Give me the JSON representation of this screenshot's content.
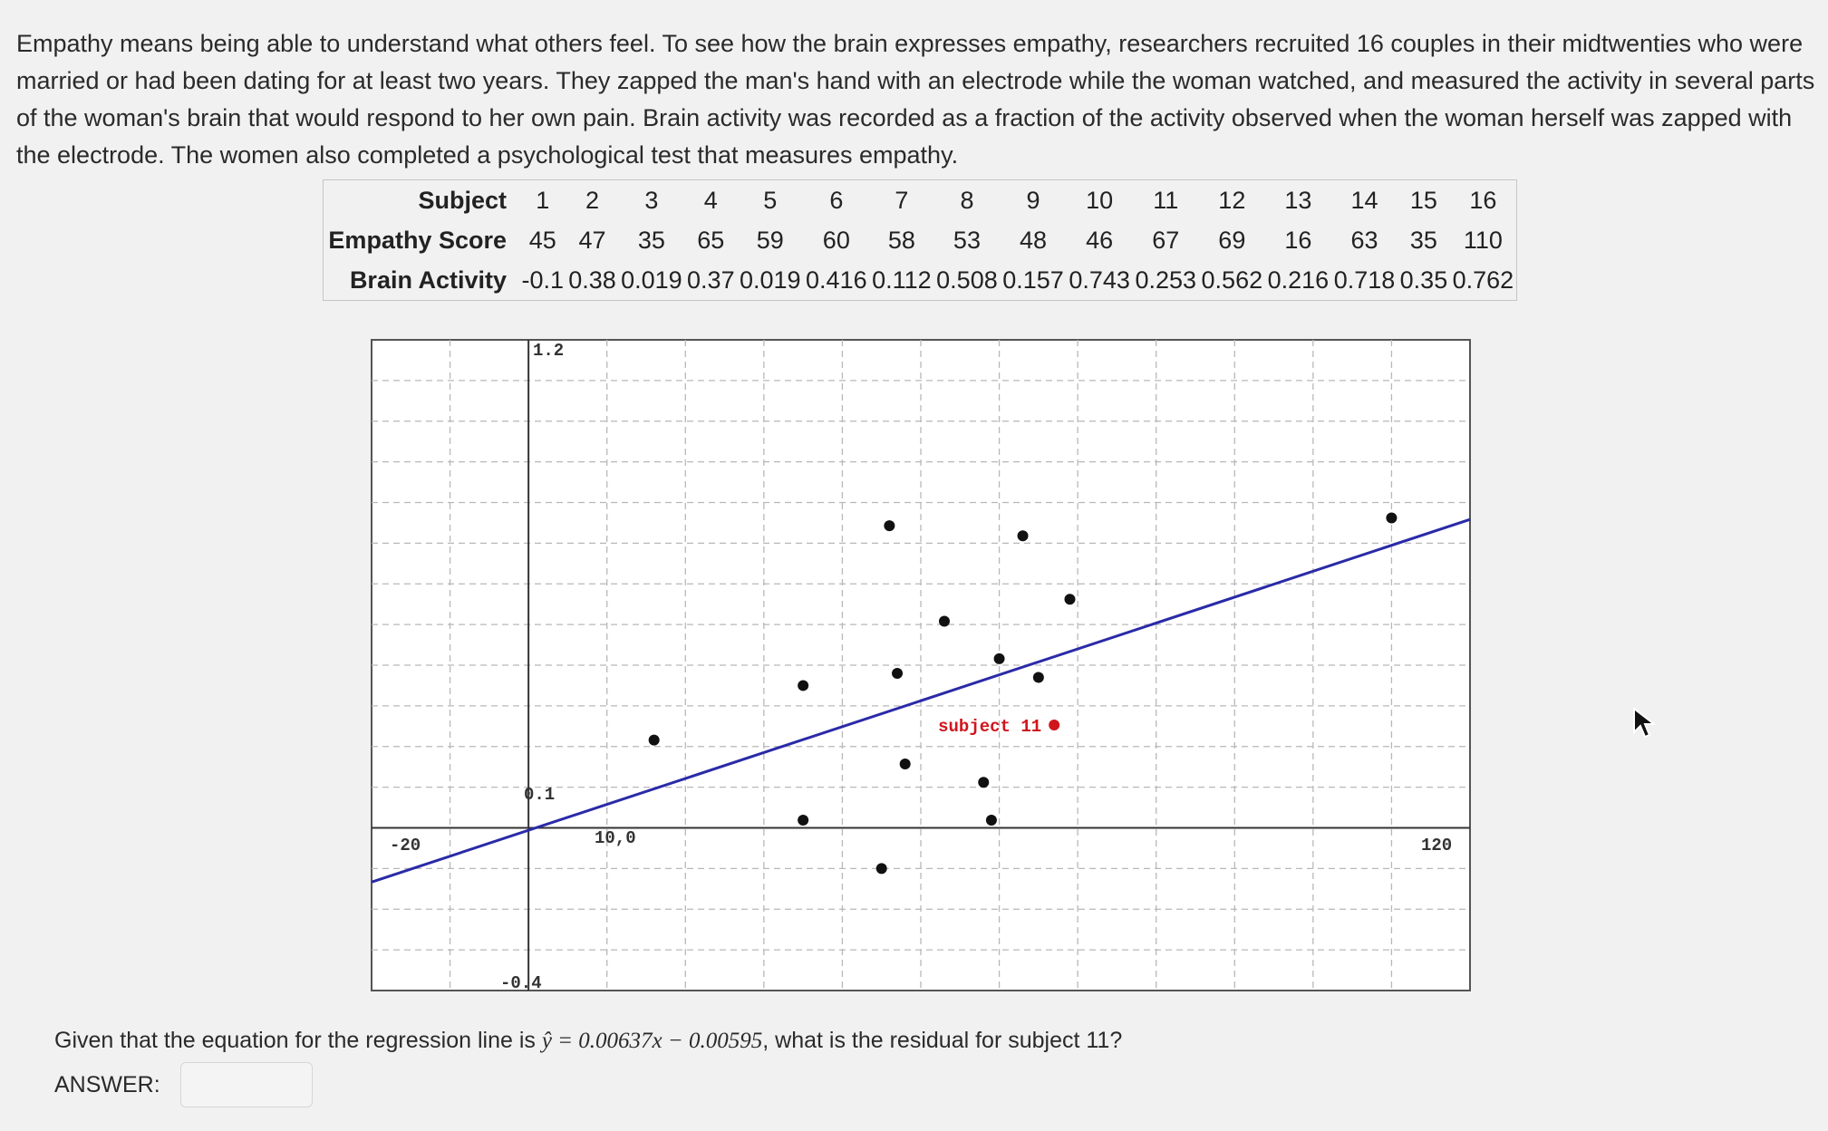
{
  "intro": {
    "paragraph": "Empathy means being able to understand what others feel. To see how the brain expresses empathy, researchers recruited 16 couples in their midtwenties who were married or had been dating for at least two years. They zapped the man's hand with an electrode while the woman watched, and measured the activity in several parts of the woman's brain that would respond to her own pain. Brain activity was recorded as a fraction of the activity observed when the woman herself was zapped with the electrode. The women also completed a psychological test that measures empathy."
  },
  "table": {
    "row_labels": [
      "Subject",
      "Empathy Score",
      "Brain Activity"
    ],
    "subjects": [
      "1",
      "2",
      "3",
      "4",
      "5",
      "6",
      "7",
      "8",
      "9",
      "10",
      "11",
      "12",
      "13",
      "14",
      "15",
      "16"
    ],
    "empathy": [
      "45",
      "47",
      "35",
      "65",
      "59",
      "60",
      "58",
      "53",
      "48",
      "46",
      "67",
      "69",
      "16",
      "63",
      "35",
      "110"
    ],
    "activity": [
      "-0.1",
      "0.38",
      "0.019",
      "0.37",
      "0.019",
      "0.416",
      "0.112",
      "0.508",
      "0.157",
      "0.743",
      "0.253",
      "0.562",
      "0.216",
      "0.718",
      "0.35",
      "0.762"
    ]
  },
  "chart_data": {
    "type": "scatter",
    "tick_labels": {
      "x_min": "-20",
      "x_max": "120",
      "x_mark": "10,0",
      "y_max": "1.2",
      "y_mark": "0.1",
      "y_min": "-0.4"
    },
    "xlim": [
      -20,
      120
    ],
    "ylim": [
      -0.4,
      1.2
    ],
    "grid": true,
    "points": [
      {
        "x": 45,
        "y": -0.1
      },
      {
        "x": 47,
        "y": 0.38
      },
      {
        "x": 35,
        "y": 0.019
      },
      {
        "x": 65,
        "y": 0.37
      },
      {
        "x": 59,
        "y": 0.019
      },
      {
        "x": 60,
        "y": 0.416
      },
      {
        "x": 58,
        "y": 0.112
      },
      {
        "x": 53,
        "y": 0.508
      },
      {
        "x": 48,
        "y": 0.157
      },
      {
        "x": 46,
        "y": 0.743
      },
      {
        "x": 67,
        "y": 0.253
      },
      {
        "x": 69,
        "y": 0.562
      },
      {
        "x": 16,
        "y": 0.216
      },
      {
        "x": 63,
        "y": 0.718
      },
      {
        "x": 35,
        "y": 0.35
      },
      {
        "x": 110,
        "y": 0.762
      }
    ],
    "highlight_index": 10,
    "highlight_label": "subject 11",
    "highlight_color": "#d0141c",
    "point_color": "#111111",
    "regression": {
      "slope": 0.00637,
      "intercept": -0.00595,
      "color": "#2a2aa8"
    }
  },
  "question": {
    "text_before": "Given that the equation for the regression line is ",
    "equation": "ŷ = 0.00637x − 0.00595",
    "text_after": ", what is the residual for subject 11?"
  },
  "answer": {
    "label": "ANSWER:",
    "value": ""
  },
  "colors": {
    "background": "#f1f1f2",
    "plot_background": "#ffffff",
    "grid": "#b8b8b8"
  }
}
